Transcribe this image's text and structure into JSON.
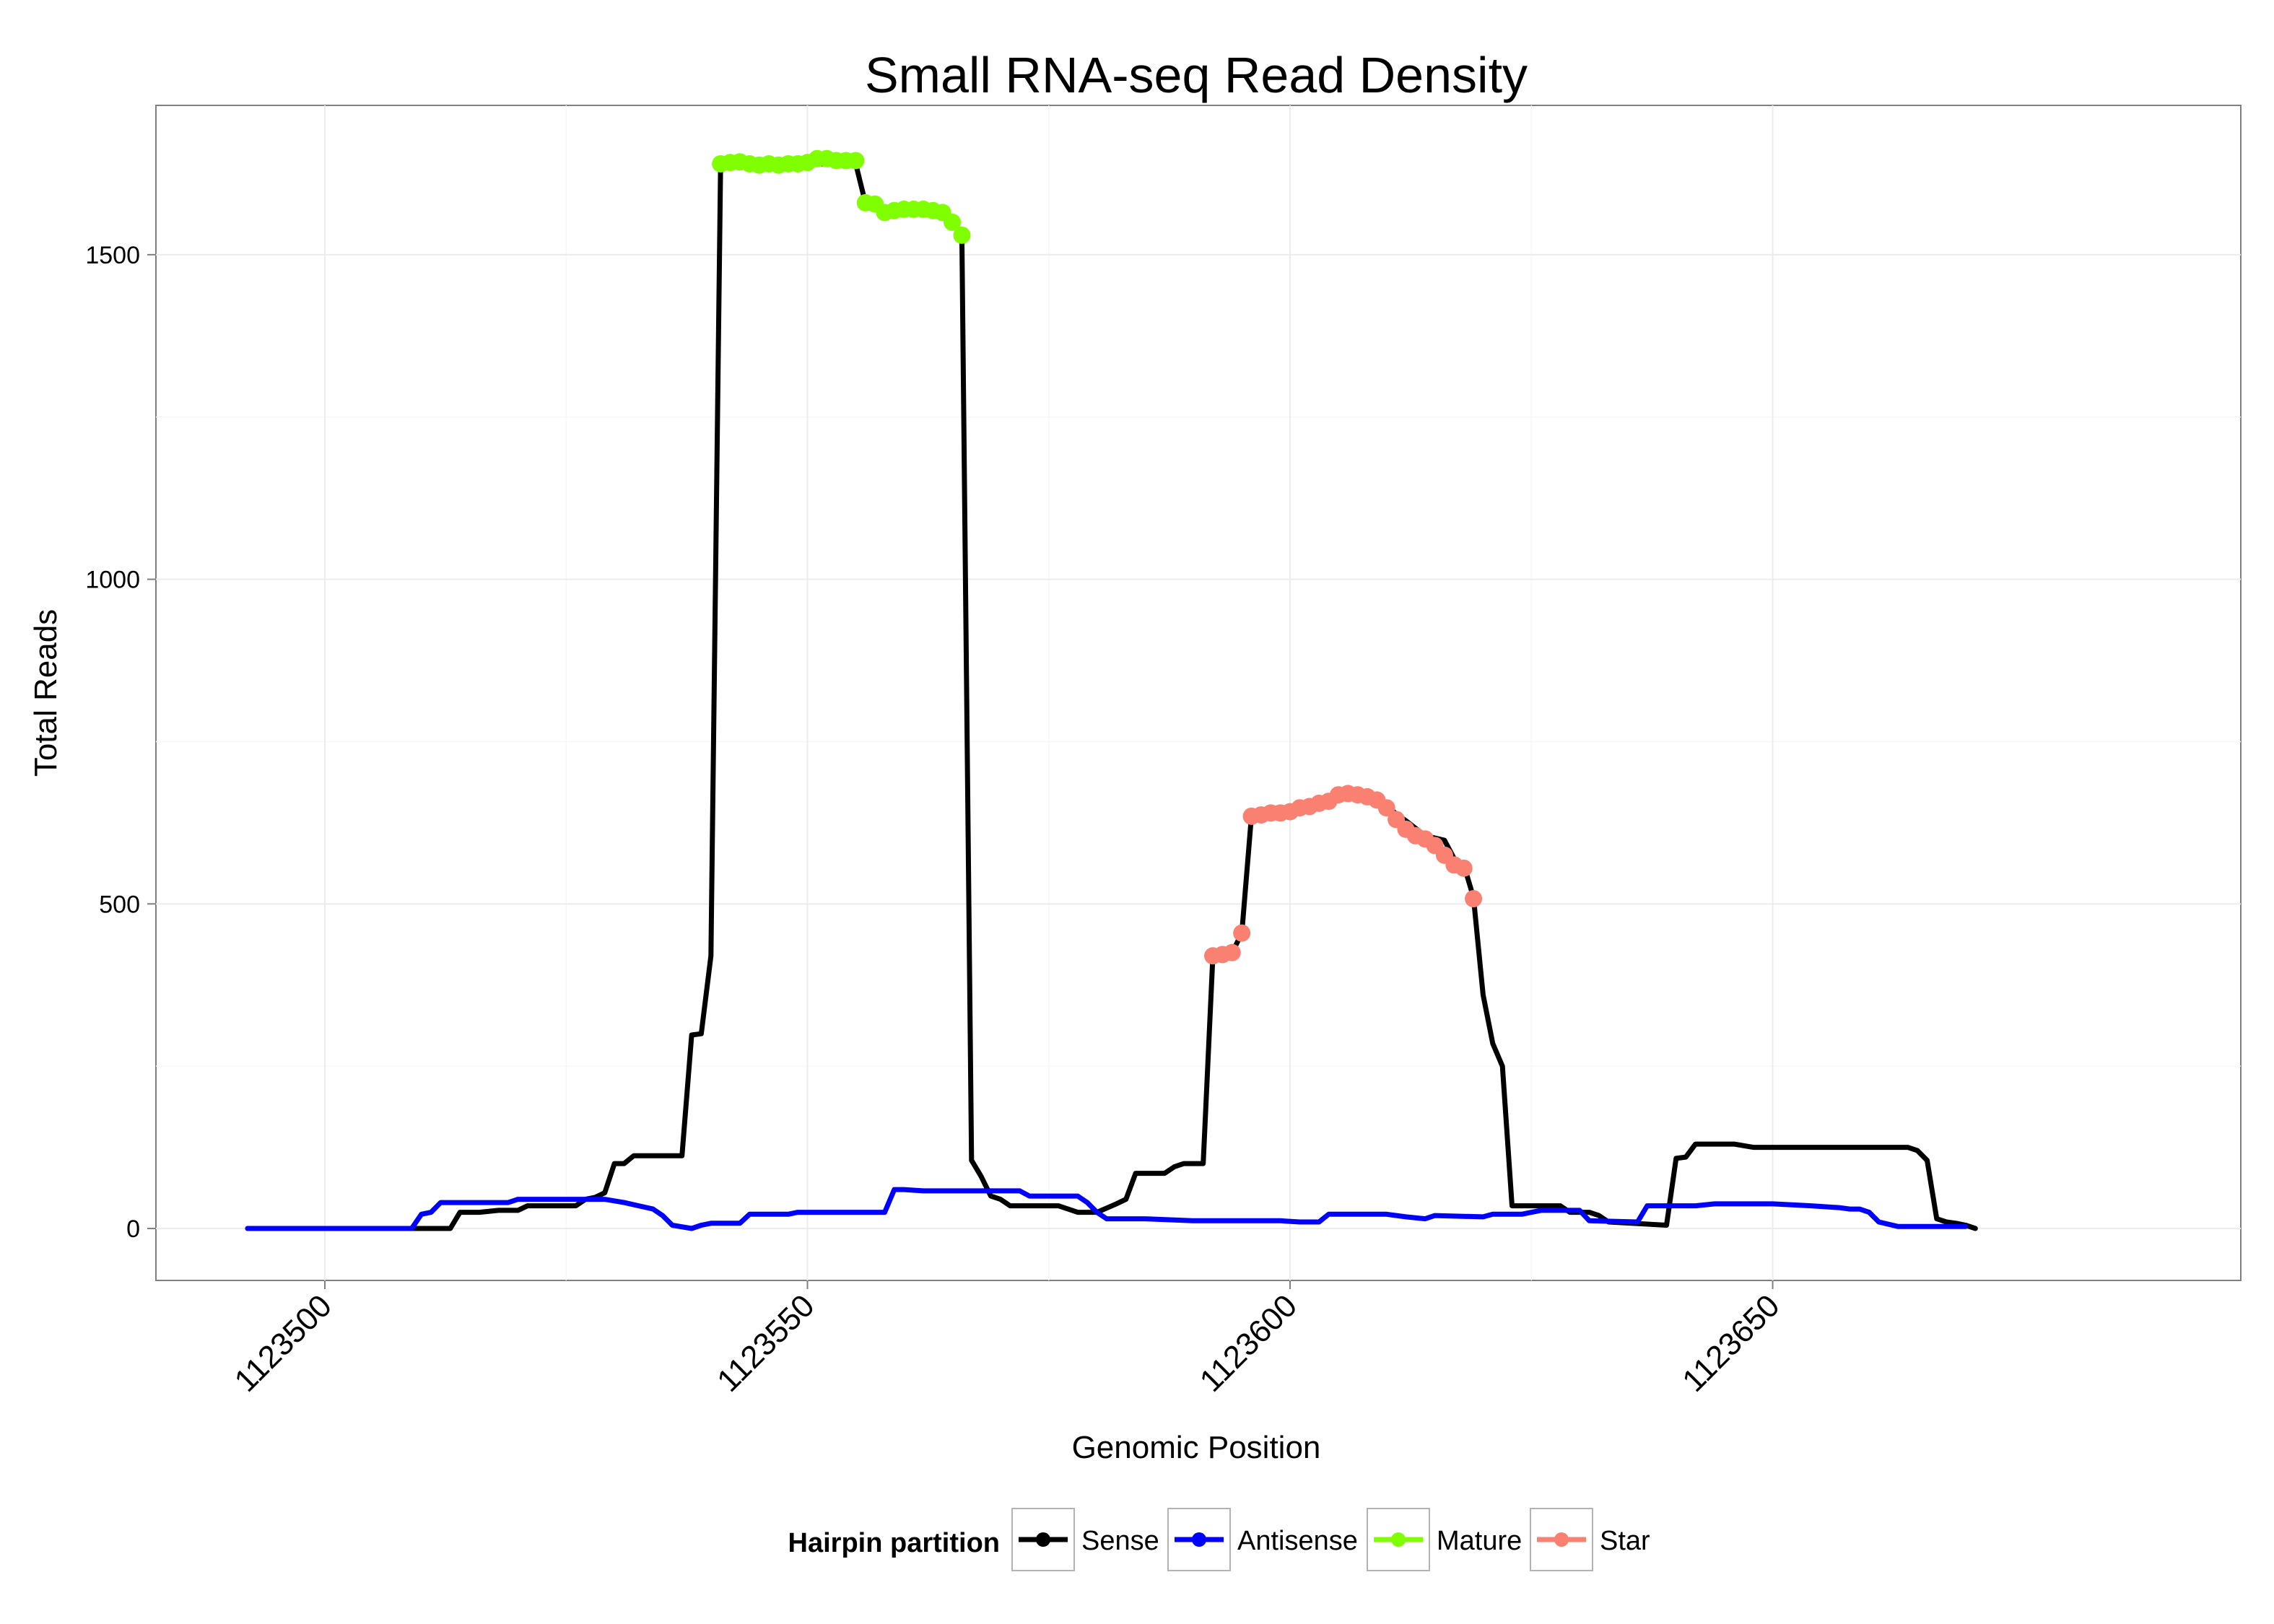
{
  "chart_data": {
    "type": "line",
    "title": "Small RNA-seq Read Density",
    "xlabel": "Genomic Position",
    "ylabel": "Total Reads",
    "xlim": [
      1123482.5,
      1123698.5
    ],
    "ylim": [
      -80,
      1730
    ],
    "x_ticks": [
      1123500,
      1123550,
      1123600,
      1123650
    ],
    "x_tick_labels": [
      "1123500",
      "1123550",
      "1123600",
      "1123650"
    ],
    "y_ticks": [
      0,
      500,
      1000,
      1500
    ],
    "y_tick_labels": [
      "0",
      "500",
      "1000",
      "1500"
    ],
    "grid": true,
    "legend": {
      "title": "Hairpin partition",
      "position": "bottom",
      "entries": [
        "Sense",
        "Antisense",
        "Mature",
        "Star"
      ]
    },
    "series": [
      {
        "name": "Sense",
        "color": "#000000",
        "style": "line",
        "points": [
          [
            1123492,
            0
          ],
          [
            1123505,
            0
          ],
          [
            1123510,
            0
          ],
          [
            1123513,
            0
          ],
          [
            1123514,
            25
          ],
          [
            1123516,
            25
          ],
          [
            1123518,
            28
          ],
          [
            1123520,
            28
          ],
          [
            1123521,
            35
          ],
          [
            1123526,
            35
          ],
          [
            1123527,
            45
          ],
          [
            1123528,
            48
          ],
          [
            1123529,
            55
          ],
          [
            1123530,
            100
          ],
          [
            1123531,
            100
          ],
          [
            1123532,
            112
          ],
          [
            1123537,
            112
          ],
          [
            1123538,
            298
          ],
          [
            1123539,
            300
          ],
          [
            1123540,
            420
          ],
          [
            1123541,
            1640
          ],
          [
            1123542,
            1640
          ],
          [
            1123555,
            1640
          ],
          [
            1123556,
            1580
          ],
          [
            1123558,
            1570
          ],
          [
            1123564,
            1570
          ],
          [
            1123565,
            1555
          ],
          [
            1123566,
            1530
          ],
          [
            1123567,
            105
          ],
          [
            1123568,
            80
          ],
          [
            1123569,
            50
          ],
          [
            1123570,
            45
          ],
          [
            1123571,
            35
          ],
          [
            1123576,
            35
          ],
          [
            1123577,
            30
          ],
          [
            1123578,
            25
          ],
          [
            1123580,
            25
          ],
          [
            1123582,
            38
          ],
          [
            1123583,
            45
          ],
          [
            1123584,
            85
          ],
          [
            1123587,
            85
          ],
          [
            1123588,
            95
          ],
          [
            1123589,
            100
          ],
          [
            1123591,
            100
          ],
          [
            1123592,
            420
          ],
          [
            1123593,
            420
          ],
          [
            1123594,
            425
          ],
          [
            1123595,
            455
          ],
          [
            1123596,
            635
          ],
          [
            1123598,
            640
          ],
          [
            1123603,
            655
          ],
          [
            1123605,
            670
          ],
          [
            1123608,
            668
          ],
          [
            1123610,
            650
          ],
          [
            1123612,
            628
          ],
          [
            1123614,
            605
          ],
          [
            1123616,
            598
          ],
          [
            1123617,
            570
          ],
          [
            1123618,
            560
          ],
          [
            1123619,
            510
          ],
          [
            1123620,
            360
          ],
          [
            1123621,
            285
          ],
          [
            1123622,
            250
          ],
          [
            1123623,
            35
          ],
          [
            1123628,
            35
          ],
          [
            1123629,
            25
          ],
          [
            1123631,
            25
          ],
          [
            1123632,
            20
          ],
          [
            1123633,
            10
          ],
          [
            1123639,
            5
          ],
          [
            1123640,
            108
          ],
          [
            1123641,
            110
          ],
          [
            1123642,
            130
          ],
          [
            1123646,
            130
          ],
          [
            1123648,
            125
          ],
          [
            1123664,
            125
          ],
          [
            1123665,
            120
          ],
          [
            1123666,
            105
          ],
          [
            1123667,
            15
          ],
          [
            1123668,
            10
          ],
          [
            1123669,
            8
          ],
          [
            1123670,
            5
          ],
          [
            1123671,
            0
          ]
        ]
      },
      {
        "name": "Antisense",
        "color": "#0000ff",
        "style": "line",
        "points": [
          [
            1123492,
            0
          ],
          [
            1123509,
            0
          ],
          [
            1123510,
            22
          ],
          [
            1123511,
            25
          ],
          [
            1123512,
            40
          ],
          [
            1123519,
            40
          ],
          [
            1123520,
            45
          ],
          [
            1123529,
            45
          ],
          [
            1123531,
            40
          ],
          [
            1123534,
            30
          ],
          [
            1123535,
            20
          ],
          [
            1123536,
            5
          ],
          [
            1123538,
            0
          ],
          [
            1123539,
            5
          ],
          [
            1123540,
            8
          ],
          [
            1123543,
            8
          ],
          [
            1123544,
            22
          ],
          [
            1123548,
            22
          ],
          [
            1123549,
            25
          ],
          [
            1123558,
            25
          ],
          [
            1123559,
            60
          ],
          [
            1123560,
            60
          ],
          [
            1123562,
            58
          ],
          [
            1123572,
            58
          ],
          [
            1123573,
            50
          ],
          [
            1123578,
            50
          ],
          [
            1123579,
            40
          ],
          [
            1123580,
            25
          ],
          [
            1123581,
            15
          ],
          [
            1123582,
            15
          ],
          [
            1123585,
            15
          ],
          [
            1123590,
            12
          ],
          [
            1123599,
            12
          ],
          [
            1123601,
            10
          ],
          [
            1123603,
            10
          ],
          [
            1123604,
            22
          ],
          [
            1123610,
            22
          ],
          [
            1123612,
            18
          ],
          [
            1123614,
            15
          ],
          [
            1123615,
            20
          ],
          [
            1123620,
            18
          ],
          [
            1123621,
            22
          ],
          [
            1123624,
            22
          ],
          [
            1123626,
            28
          ],
          [
            1123630,
            28
          ],
          [
            1123631,
            12
          ],
          [
            1123636,
            10
          ],
          [
            1123637,
            35
          ],
          [
            1123642,
            35
          ],
          [
            1123644,
            38
          ],
          [
            1123650,
            38
          ],
          [
            1123654,
            35
          ],
          [
            1123657,
            32
          ],
          [
            1123658,
            30
          ],
          [
            1123659,
            30
          ],
          [
            1123660,
            25
          ],
          [
            1123661,
            10
          ],
          [
            1123663,
            3
          ],
          [
            1123665,
            3
          ],
          [
            1123670,
            3
          ]
        ]
      },
      {
        "name": "Mature",
        "color": "#7fff00",
        "style": "points",
        "points": [
          [
            1123541,
            1640
          ],
          [
            1123542,
            1642
          ],
          [
            1123543,
            1643
          ],
          [
            1123544,
            1640
          ],
          [
            1123545,
            1638
          ],
          [
            1123546,
            1640
          ],
          [
            1123547,
            1638
          ],
          [
            1123548,
            1640
          ],
          [
            1123549,
            1640
          ],
          [
            1123550,
            1642
          ],
          [
            1123551,
            1648
          ],
          [
            1123552,
            1648
          ],
          [
            1123553,
            1645
          ],
          [
            1123554,
            1645
          ],
          [
            1123555,
            1645
          ],
          [
            1123556,
            1580
          ],
          [
            1123557,
            1578
          ],
          [
            1123558,
            1565
          ],
          [
            1123559,
            1568
          ],
          [
            1123560,
            1570
          ],
          [
            1123561,
            1570
          ],
          [
            1123562,
            1570
          ],
          [
            1123563,
            1568
          ],
          [
            1123564,
            1565
          ],
          [
            1123565,
            1550
          ],
          [
            1123566,
            1530
          ]
        ]
      },
      {
        "name": "Star",
        "color": "#fa8072",
        "style": "points",
        "points": [
          [
            1123592,
            420
          ],
          [
            1123593,
            422
          ],
          [
            1123594,
            425
          ],
          [
            1123595,
            455
          ],
          [
            1123596,
            635
          ],
          [
            1123597,
            637
          ],
          [
            1123598,
            640
          ],
          [
            1123599,
            640
          ],
          [
            1123600,
            642
          ],
          [
            1123601,
            648
          ],
          [
            1123602,
            650
          ],
          [
            1123603,
            655
          ],
          [
            1123604,
            658
          ],
          [
            1123605,
            668
          ],
          [
            1123606,
            670
          ],
          [
            1123607,
            668
          ],
          [
            1123608,
            665
          ],
          [
            1123609,
            660
          ],
          [
            1123610,
            648
          ],
          [
            1123611,
            630
          ],
          [
            1123612,
            615
          ],
          [
            1123613,
            605
          ],
          [
            1123614,
            600
          ],
          [
            1123615,
            590
          ],
          [
            1123616,
            575
          ],
          [
            1123617,
            560
          ],
          [
            1123618,
            555
          ],
          [
            1123619,
            508
          ]
        ]
      }
    ]
  }
}
